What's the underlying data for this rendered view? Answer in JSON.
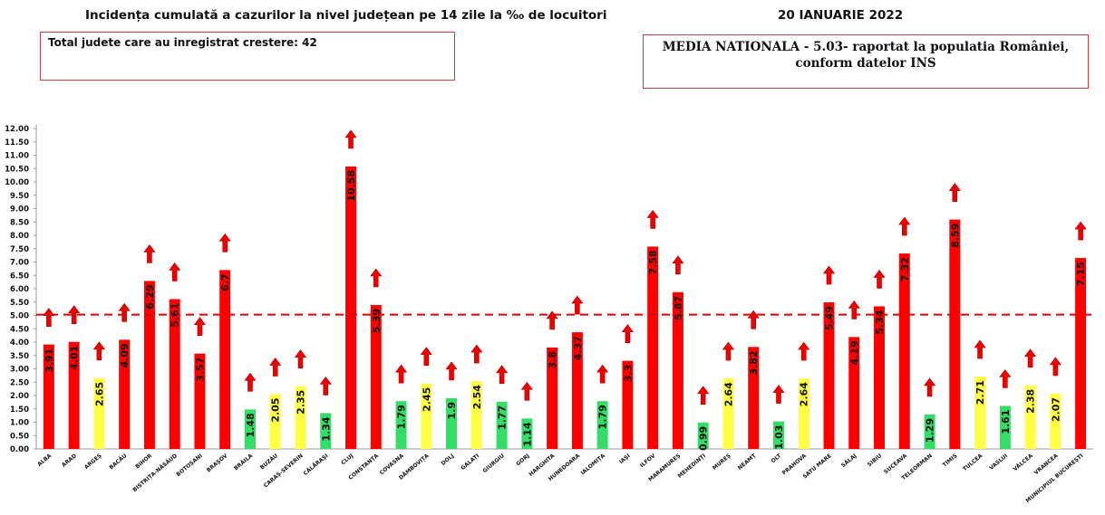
{
  "header": {
    "title": "Incidența cumulată a cazurilor la nivel județean pe 14 zile la ‰ de locuitori",
    "date": "20 IANUARIE 2022"
  },
  "growth_box": {
    "text": "Total judete care au inregistrat crestere: 42"
  },
  "national_box": {
    "text": "MEDIA NATIONALA - 5.03-  raportat la populatia României, conform datelor INS"
  },
  "colors": {
    "red": "#ff0000",
    "yellow": "#ffff44",
    "green": "#33dd66",
    "reference_line": "#e00000",
    "arrow": "#ee0000"
  },
  "chart_data": {
    "type": "bar",
    "title": "Incidența cumulată a cazurilor la nivel județean pe 14 zile la ‰ de locuitori",
    "xlabel": "",
    "ylabel": "",
    "ylim": [
      0,
      12
    ],
    "y_ticks": [
      "0.00",
      "0.50",
      "1.00",
      "1.50",
      "2.00",
      "2.50",
      "3.00",
      "3.50",
      "4.00",
      "4.50",
      "5.00",
      "5.50",
      "6.00",
      "6.50",
      "7.00",
      "7.50",
      "8.00",
      "8.50",
      "9.00",
      "9.50",
      "10.00",
      "10.50",
      "11.00",
      "11.50",
      "12.00"
    ],
    "reference_line": {
      "value": 5.03,
      "style": "dashed"
    },
    "categories": [
      "ALBA",
      "ARAD",
      "ARGEȘ",
      "BACĂU",
      "BIHOR",
      "BISTRIȚA-NĂSĂUD",
      "BOTOȘANI",
      "BRAȘOV",
      "BRĂILA",
      "BUZĂU",
      "CARAȘ-SEVERIN",
      "CĂLĂRAȘI",
      "CLUJ",
      "CONSTANȚA",
      "COVASNA",
      "DÂMBOVIȚA",
      "DOLJ",
      "GALAȚI",
      "GIURGIU",
      "GORJ",
      "HARGHITA",
      "HUNEDOARA",
      "IALOMIȚA",
      "IAȘI",
      "ILFOV",
      "MARAMUREȘ",
      "MEHEDINȚI",
      "MUREȘ",
      "NEAMȚ",
      "OLT",
      "PRAHOVA",
      "SATU MARE",
      "SĂLAJ",
      "SIBIU",
      "SUCEAVA",
      "TELEORMAN",
      "TIMIȘ",
      "TULCEA",
      "VASLUI",
      "VÂLCEA",
      "VRANCEA",
      "MUNICIPIUL BUCUREȘTI"
    ],
    "values": [
      3.91,
      4.01,
      2.65,
      4.09,
      6.29,
      5.61,
      3.57,
      6.7,
      1.48,
      2.05,
      2.35,
      1.34,
      10.58,
      5.39,
      1.79,
      2.45,
      1.9,
      2.54,
      1.77,
      1.14,
      3.8,
      4.37,
      1.79,
      3.3,
      7.58,
      5.87,
      0.99,
      2.64,
      3.82,
      1.03,
      2.64,
      5.49,
      4.19,
      5.34,
      7.32,
      1.29,
      8.59,
      2.71,
      1.61,
      2.38,
      2.07,
      7.15
    ],
    "value_labels": [
      "3.91",
      "4.01",
      "2.65",
      "4.09",
      "6.29",
      "5.61",
      "3.57",
      "6.7",
      "1.48",
      "2.05",
      "2.35",
      "1.34",
      "10.58",
      "5.39",
      "1.79",
      "2.45",
      "1.9",
      "2.54",
      "1.77",
      "1.14",
      "3.8",
      "4.37",
      "1.79",
      "3.3",
      "7.58",
      "5.87",
      "0.99",
      "2.64",
      "3.82",
      "1.03",
      "2.64",
      "5.49",
      "4.19",
      "5.34",
      "7.32",
      "1.29",
      "8.59",
      "2.71",
      "1.61",
      "2.38",
      "2.07",
      "7.15"
    ],
    "bar_colors": [
      "red",
      "red",
      "yellow",
      "red",
      "red",
      "red",
      "red",
      "red",
      "green",
      "yellow",
      "yellow",
      "green",
      "red",
      "red",
      "green",
      "yellow",
      "green",
      "yellow",
      "green",
      "green",
      "red",
      "red",
      "green",
      "red",
      "red",
      "red",
      "green",
      "yellow",
      "red",
      "green",
      "yellow",
      "red",
      "red",
      "red",
      "red",
      "green",
      "red",
      "yellow",
      "green",
      "yellow",
      "yellow",
      "red"
    ],
    "trend_arrows": [
      "up",
      "up",
      "up",
      "up",
      "up",
      "up",
      "up",
      "up",
      "up",
      "up",
      "up",
      "up",
      "up",
      "up",
      "up",
      "up",
      "up",
      "up",
      "up",
      "up",
      "up",
      "up",
      "up",
      "up",
      "up",
      "up",
      "up",
      "up",
      "up",
      "up",
      "up",
      "up",
      "up",
      "up",
      "up",
      "up",
      "up",
      "up",
      "up",
      "up",
      "up",
      "up"
    ],
    "grid": false,
    "legend": "none"
  }
}
